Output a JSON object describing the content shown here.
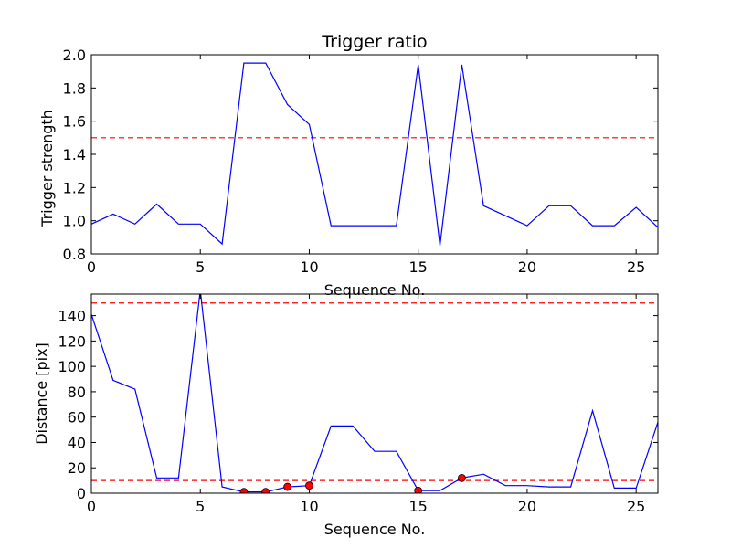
{
  "chart_data": [
    {
      "type": "line",
      "title": "Trigger ratio",
      "xlabel": "Sequence No.",
      "ylabel": "Trigger strength",
      "xlim": [
        0,
        26
      ],
      "ylim": [
        0.8,
        2.0
      ],
      "xticks": [
        0,
        5,
        10,
        15,
        20,
        25
      ],
      "yticks": [
        0.8,
        1.0,
        1.2,
        1.4,
        1.6,
        1.8,
        2.0
      ],
      "ytick_labels": [
        "0.8",
        "1.0",
        "1.2",
        "1.4",
        "1.6",
        "1.8",
        "2.0"
      ],
      "grid": false,
      "series": [
        {
          "color": "#0000ff",
          "x": [
            0,
            1,
            2,
            3,
            4,
            5,
            6,
            7,
            8,
            9,
            10,
            11,
            12,
            13,
            14,
            15,
            16,
            17,
            18,
            19,
            20,
            21,
            22,
            23,
            24,
            25,
            26
          ],
          "values": [
            0.98,
            1.04,
            0.98,
            1.1,
            0.98,
            0.98,
            0.86,
            1.95,
            1.95,
            1.7,
            1.58,
            0.97,
            0.97,
            0.97,
            0.97,
            1.94,
            0.85,
            1.94,
            1.09,
            1.03,
            0.97,
            1.09,
            1.09,
            0.97,
            0.97,
            1.08,
            0.96
          ]
        }
      ],
      "hlines": [
        {
          "y": 1.5,
          "color": "#ff0000",
          "style": "dashed"
        }
      ]
    },
    {
      "type": "line",
      "title": "",
      "xlabel": "Sequence No.",
      "ylabel": "Distance [pix]",
      "xlim": [
        0,
        26
      ],
      "ylim": [
        0,
        157
      ],
      "xticks": [
        0,
        5,
        10,
        15,
        20,
        25
      ],
      "yticks": [
        0,
        20,
        40,
        60,
        80,
        100,
        120,
        140
      ],
      "ytick_labels": [
        "0",
        "20",
        "40",
        "60",
        "80",
        "100",
        "120",
        "140"
      ],
      "grid": false,
      "series": [
        {
          "color": "#0000ff",
          "x": [
            0,
            1,
            2,
            3,
            4,
            5,
            6,
            7,
            8,
            9,
            10,
            11,
            12,
            13,
            14,
            15,
            16,
            17,
            18,
            19,
            20,
            21,
            22,
            23,
            24,
            25,
            26
          ],
          "values": [
            141,
            89,
            82,
            12,
            12,
            160,
            5,
            1,
            1,
            5,
            6,
            53,
            53,
            33,
            33,
            2,
            2,
            12,
            15,
            6,
            6,
            5,
            5,
            65,
            4,
            4,
            56
          ]
        }
      ],
      "markers": {
        "color": "#ff0000",
        "x": [
          7,
          8,
          9,
          10,
          15,
          17
        ],
        "values": [
          1,
          1,
          5,
          6,
          2,
          12
        ]
      },
      "hlines": [
        {
          "y": 150,
          "color": "#ff0000",
          "style": "dashed"
        },
        {
          "y": 10,
          "color": "#ff0000",
          "style": "dashed"
        }
      ]
    }
  ]
}
